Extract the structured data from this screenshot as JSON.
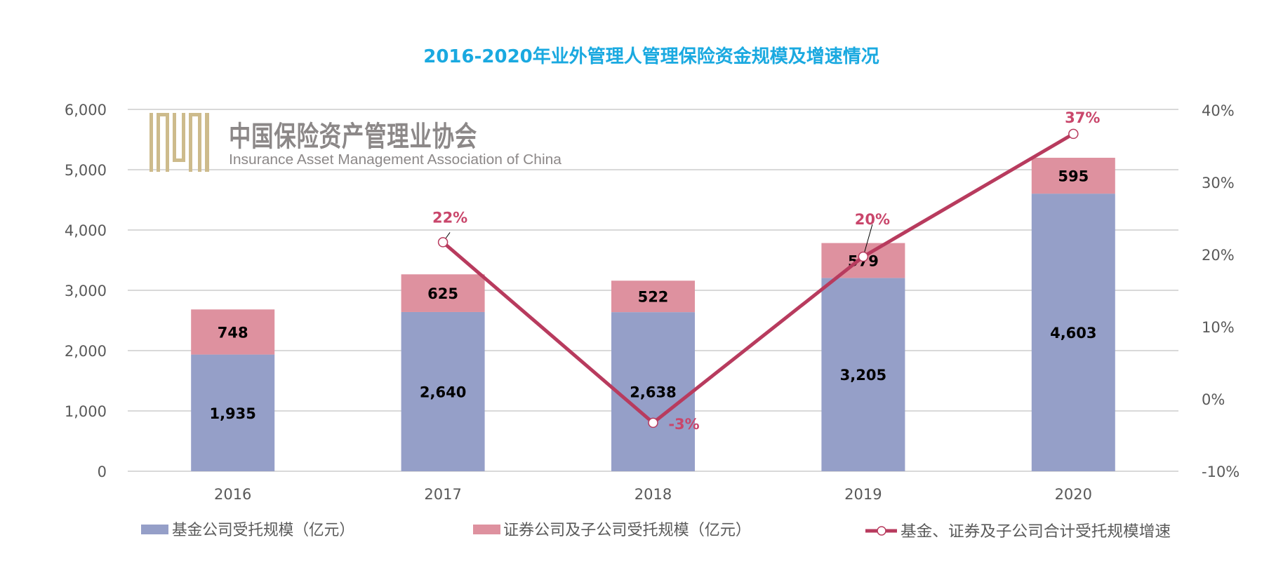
{
  "chart_data": {
    "type": "bar",
    "stacked": true,
    "title": "2016-2020年业外管理人管理保险资金规模及增速情况",
    "categories": [
      "2016",
      "2017",
      "2018",
      "2019",
      "2020"
    ],
    "series": [
      {
        "name": "基金公司受托规模（亿元）",
        "type": "bar",
        "axis": "left",
        "color": "#959fc8",
        "values": [
          1935,
          2640,
          2638,
          3205,
          4603
        ],
        "labels": [
          "1,935",
          "2,640",
          "2,638",
          "3,205",
          "4,603"
        ]
      },
      {
        "name": "证券公司及子公司受托规模（亿元）",
        "type": "bar",
        "axis": "left",
        "color": "#de919f",
        "values": [
          748,
          625,
          522,
          579,
          595
        ],
        "labels": [
          "748",
          "625",
          "522",
          "579",
          "595"
        ]
      },
      {
        "name": "基金、证券及子公司合计受托规模增速",
        "type": "line",
        "axis": "right",
        "color": "#b83b5e",
        "values": [
          null,
          22,
          -3,
          20,
          37
        ],
        "labels": [
          "",
          "22%",
          "-3%",
          "20%",
          "37%"
        ]
      }
    ],
    "y_left": {
      "min": 0,
      "max": 6000,
      "ticks": [
        "0",
        "1,000",
        "2,000",
        "3,000",
        "4,000",
        "5,000",
        "6,000"
      ]
    },
    "y_right": {
      "min": -10,
      "max": 40,
      "ticks": [
        "-10%",
        "0%",
        "10%",
        "20%",
        "30%",
        "40%"
      ]
    },
    "grid": true,
    "legend_position": "bottom"
  },
  "watermark": {
    "logo_mark": "IAMAC",
    "name_cn": "中国保险资产管理业协会",
    "name_en": "Insurance Asset Management Association of China"
  }
}
